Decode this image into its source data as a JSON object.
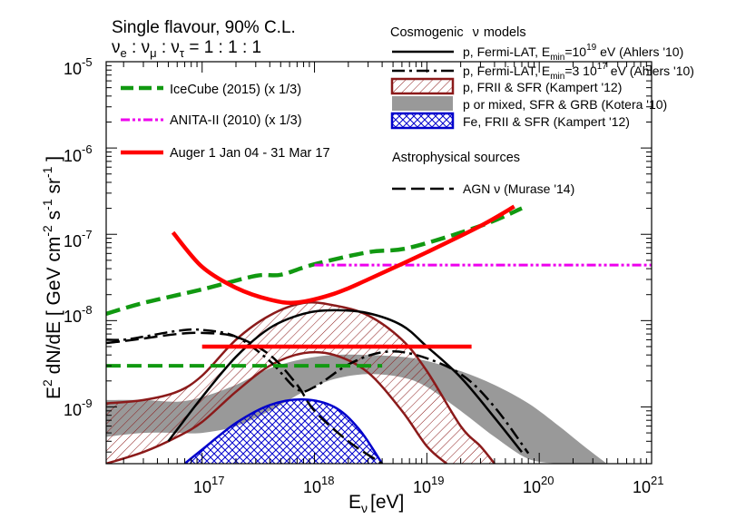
{
  "chart_data": {
    "type": "line",
    "xlabel_main": "E",
    "xlabel_sub": "ν",
    "xlabel_unit": "[eV]",
    "ylabel_left": "E",
    "ylabel_exp": "2",
    "ylabel_dnde": " dN/dE  [ GeV cm",
    "ylabel_m2": "-2",
    "ylabel_s": " s",
    "ylabel_m1a": "-1",
    "ylabel_sr": " sr",
    "ylabel_m1b": "-1",
    "ylabel_close": " ]",
    "x_scale": "log",
    "y_scale": "log",
    "xlim": [
      1.4e+16,
      1e+21
    ],
    "ylim": [
      2.2e-10,
      1e-05
    ],
    "x_ticks": [
      {
        "base": "10",
        "exp": "17",
        "value": 1e+17
      },
      {
        "base": "10",
        "exp": "18",
        "value": 1e+18
      },
      {
        "base": "10",
        "exp": "19",
        "value": 1e+19
      },
      {
        "base": "10",
        "exp": "20",
        "value": 1e+20
      },
      {
        "base": "10",
        "exp": "21",
        "value": 1e+21
      }
    ],
    "y_ticks": [
      {
        "base": "10",
        "exp": "-9",
        "value": 1e-09
      },
      {
        "base": "10",
        "exp": "-8",
        "value": 1e-08
      },
      {
        "base": "10",
        "exp": "-7",
        "value": 1e-07
      },
      {
        "base": "10",
        "exp": "-6",
        "value": 1e-06
      },
      {
        "base": "10",
        "exp": "-5",
        "value": 1e-05
      }
    ],
    "title": {
      "line1": "Single flavour, 90% C.L.",
      "nu": "ν",
      "e": "e",
      "colon": " : ",
      "mu": "μ",
      "tau": "τ",
      "ratio": " = 1 : 1 : 1"
    },
    "left_legend": [
      {
        "label": "IceCube (2015) (x 1/3)",
        "color": "#119911"
      },
      {
        "label": "ANITA-II (2010) (x 1/3)",
        "color": "#ee00ee"
      },
      {
        "label": "Auger 1 Jan 04 - 31 Mar 17",
        "color": "#ff0000"
      }
    ],
    "right_legend": {
      "header_prefix": "Cosmogenic",
      "header_nu": "ν",
      "header_suffix": "models",
      "fermi1_text": "p, Fermi-LAT, E",
      "fermi1_sub": "min",
      "fermi1_eq": "=10",
      "fermi1_exp": "19",
      "fermi1_tail": " eV (Ahlers '10)",
      "fermi2_text": "p, Fermi-LAT, E",
      "fermi2_sub": "min",
      "fermi2_eq": "=3 10",
      "fermi2_exp": "17",
      "fermi2_tail": " eV (Ahlers '10)",
      "kampert_p": "p, FRII & SFR (Kampert '12)",
      "kotera": "p or mixed, SFR & GRB (Kotera '10)",
      "kampert_fe": "Fe, FRII & SFR (Kampert '12)",
      "astro_header": "Astrophysical sources",
      "agn_label": "AGN ν (Murase '14)"
    },
    "colors": {
      "icecube": "#119911",
      "anita": "#ee00ee",
      "auger": "#ff0000",
      "kampert_p": "#8b1a1a",
      "kotera": "#999999",
      "kampert_fe": "#0000cc",
      "black": "#000000"
    },
    "series": [
      {
        "name": "IceCube (2015) (x 1/3)",
        "kind": "limit",
        "x": [
          1.4e+16,
          3e+16,
          1e+17,
          3e+17,
          5e+17,
          1e+18,
          3e+18,
          7e+18,
          3e+19,
          7e+19
        ],
        "y": [
          1.2e-08,
          1.6e-08,
          2.3e-08,
          3.3e-08,
          3.4e-08,
          4.5e-08,
          6.2e-08,
          7e-08,
          1.25e-07,
          2e-07
        ]
      },
      {
        "name": "IceCube (2015) (x 1/3) E^-2 flux",
        "kind": "flat",
        "x": [
          1.4e+16,
          4e+18
        ],
        "y": [
          3e-09,
          3e-09
        ]
      },
      {
        "name": "ANITA-II (2010) (x 1/3)",
        "kind": "limit",
        "x": [
          1e+18,
          1e+21
        ],
        "y": [
          4.4e-08,
          4.4e-08
        ]
      },
      {
        "name": "Auger 1 Jan 04 - 31 Mar 17",
        "kind": "limit",
        "x": [
          5.5e+16,
          1e+17,
          2e+17,
          4e+17,
          7e+17,
          1.5e+18,
          3e+18,
          1e+19,
          3e+19,
          6e+19
        ],
        "y": [
          1.05e-07,
          4.2e-08,
          2.4e-08,
          1.75e-08,
          1.62e-08,
          2.05e-08,
          3e-08,
          6.2e-08,
          1.25e-07,
          2.1e-07
        ]
      },
      {
        "name": "Auger 1 Jan 04 - 31 Mar 17 E^-2 flux",
        "kind": "flat",
        "x": [
          1e+17,
          2.5e+19
        ],
        "y": [
          5e-09,
          5e-09
        ]
      },
      {
        "name": "p, Fermi-LAT, Emin=10^19 eV (Ahlers '10)",
        "x": [
          5e+16,
          1e+17,
          2e+17,
          4e+17,
          8e+17,
          1.5e+18,
          3e+18,
          6e+18,
          1e+19,
          2e+19,
          4e+19,
          7e+19
        ],
        "y": [
          4e-10,
          1.3e-09,
          3.8e-09,
          8.2e-09,
          1.2e-08,
          1.32e-08,
          1.22e-08,
          8.8e-09,
          5e-09,
          2.2e-09,
          7.5e-10,
          3e-10
        ]
      },
      {
        "name": "p, Fermi-LAT, Emin=3 10^17 eV (Ahlers '10)",
        "x": [
          1.4e+16,
          2e+16,
          3e+16,
          6e+16,
          1e+17,
          2e+17,
          4e+17,
          7e+17,
          1e+18,
          2e+18,
          4e+18,
          8e+18,
          2e+19,
          4e+19,
          8e+19
        ],
        "y": [
          6e-09,
          6e-09,
          6.5e-09,
          7.6e-09,
          7.8e-09,
          6.5e-09,
          3.4e-09,
          1.6e-09,
          1.7e-09,
          3.1e-09,
          4.3e-09,
          4e-09,
          2.4e-09,
          1e-09,
          2.9e-10
        ]
      },
      {
        "name": "AGN ν (Murase '14)",
        "x": [
          1.4e+16,
          2e+16,
          3e+16,
          6e+16,
          1e+17,
          2e+17,
          4e+17,
          7e+17,
          1e+18,
          2e+18,
          4e+18
        ],
        "y": [
          5.5e-09,
          5.8e-09,
          6.2e-09,
          7e-09,
          7.2e-09,
          6.5e-09,
          4e-09,
          1.8e-09,
          9e-10,
          4e-10,
          2.2e-10
        ]
      },
      {
        "name": "p, FRII & SFR (Kampert '12) upper",
        "x": [
          1.4e+16,
          3e+16,
          6e+16,
          1e+17,
          2e+17,
          4e+17,
          8e+17,
          1.5e+18,
          3e+18,
          6e+18,
          1e+19,
          2e+19,
          3e+19,
          4e+19
        ],
        "y": [
          1.1e-09,
          1.2e-09,
          1.5e-09,
          2.3e-09,
          6e-09,
          1.15e-08,
          1.6e-08,
          1.5e-08,
          1.15e-08,
          6e-09,
          2.6e-09,
          6e-10,
          3.5e-10,
          2.2e-10
        ]
      },
      {
        "name": "p, FRII & SFR (Kampert '12) lower",
        "x": [
          1.4e+16,
          3e+16,
          6e+16,
          1e+17,
          2e+17,
          4e+17,
          8e+17,
          1.5e+18,
          3e+18,
          6e+18,
          1e+19,
          1.5e+19
        ],
        "y": [
          2.2e-10,
          3e-10,
          4.5e-10,
          6.7e-10,
          1.5e-09,
          3e-09,
          4.2e-09,
          4e-09,
          2.5e-09,
          9e-10,
          3.5e-10,
          2.2e-10
        ]
      },
      {
        "name": "p or mixed, SFR & GRB (Kotera '10) upper",
        "x": [
          1.4e+16,
          3e+16,
          6e+16,
          1e+17,
          2e+17,
          4e+17,
          8e+17,
          1.5e+18,
          3e+18,
          6e+18,
          1e+19,
          2e+19,
          4e+19,
          8e+19,
          1.5e+20,
          2.5e+20,
          4e+20
        ],
        "y": [
          1.2e-09,
          1.2e-09,
          1.15e-09,
          1.3e-09,
          1.8e-09,
          2.8e-09,
          3.6e-09,
          4e-09,
          4e-09,
          3.8e-09,
          3.4e-09,
          2.6e-09,
          1.8e-09,
          1.1e-09,
          6e-10,
          3.5e-10,
          2.2e-10
        ]
      },
      {
        "name": "p or mixed, SFR & GRB (Kotera '10) lower",
        "x": [
          1.4e+16,
          3e+16,
          6e+16,
          1e+17,
          2e+17,
          4e+17,
          8e+17,
          1.5e+18,
          3e+18,
          6e+18,
          1e+19,
          2e+19,
          4e+19,
          8e+19,
          1.5e+20
        ],
        "y": [
          4.5e-10,
          5e-10,
          5e-10,
          5e-10,
          6e-10,
          9e-10,
          1.5e-09,
          2.1e-09,
          2.4e-09,
          2.2e-09,
          1.7e-09,
          9e-10,
          4.5e-10,
          2.5e-10,
          2.2e-10
        ]
      },
      {
        "name": "Fe, FRII & SFR (Kampert '12)",
        "x": [
          7e+16,
          1e+17,
          2e+17,
          4e+17,
          8e+17,
          1.5e+18,
          2.5e+18,
          4e+18
        ],
        "y": [
          2.2e-10,
          3.2e-10,
          6.5e-10,
          1.05e-09,
          1.22e-09,
          1e-09,
          5.5e-10,
          2.2e-10
        ]
      }
    ]
  }
}
